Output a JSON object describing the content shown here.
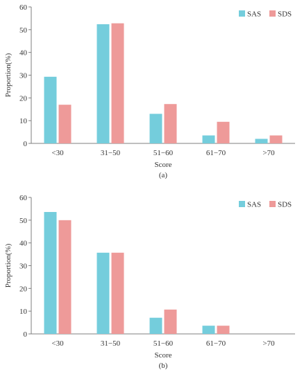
{
  "colors": {
    "SAS": "#74CDDC",
    "SDS": "#EE9A99",
    "axis": "#7f7f7f"
  },
  "chart_data": [
    {
      "type": "bar",
      "caption": "(a)",
      "categories": [
        "<30",
        "31−50",
        "51−60",
        "61−70",
        ">70"
      ],
      "series": [
        {
          "name": "SAS",
          "values": [
            29.3,
            52.4,
            13.0,
            3.5,
            2.0
          ]
        },
        {
          "name": "SDS",
          "values": [
            17.0,
            52.8,
            17.3,
            9.5,
            3.5
          ]
        }
      ],
      "xlabel": "Score",
      "ylabel": "Proportion(%)",
      "ylim": [
        0,
        60
      ],
      "yticks": [
        "0",
        "10",
        "20",
        "30",
        "40",
        "50",
        "60"
      ],
      "grid": false,
      "legend": "top-right"
    },
    {
      "type": "bar",
      "caption": "(b)",
      "categories": [
        "<30",
        "31−50",
        "51−60",
        "61−70",
        ">70"
      ],
      "series": [
        {
          "name": "SAS",
          "values": [
            53.6,
            35.7,
            7.1,
            3.6,
            0
          ]
        },
        {
          "name": "SDS",
          "values": [
            50.0,
            35.7,
            10.7,
            3.6,
            0
          ]
        }
      ],
      "xlabel": "Score",
      "ylabel": "Proportion(%)",
      "ylim": [
        0,
        60
      ],
      "yticks": [
        "0",
        "10",
        "20",
        "30",
        "40",
        "50",
        "60"
      ],
      "grid": false,
      "legend": "top-right"
    }
  ]
}
